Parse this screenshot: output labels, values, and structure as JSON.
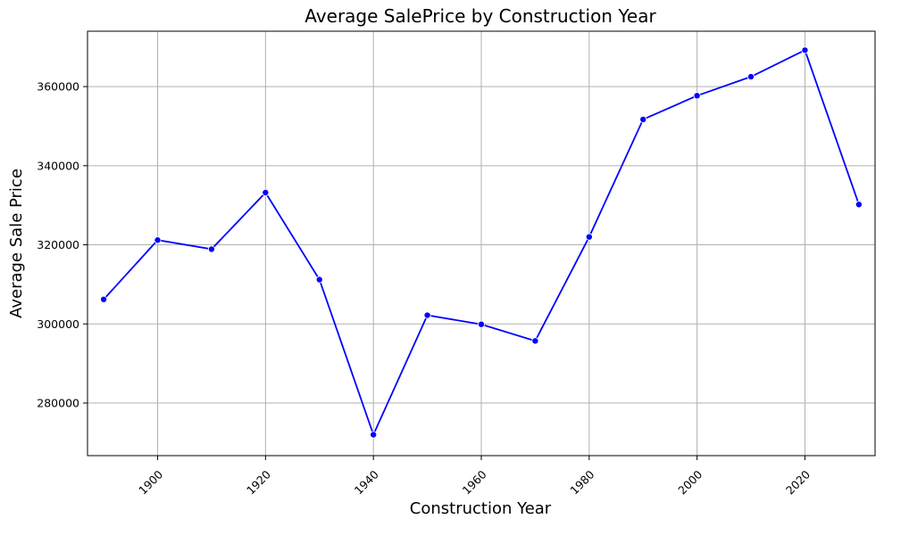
{
  "chart_data": {
    "type": "line",
    "title": "Average SalePrice by Construction Year",
    "xlabel": "Construction Year",
    "ylabel": "Average Sale Price",
    "xlim": [
      1887,
      2033
    ],
    "ylim": [
      266700,
      374000
    ],
    "xticks": [
      1900,
      1920,
      1940,
      1960,
      1980,
      2000,
      2020
    ],
    "yticks": [
      280000,
      300000,
      320000,
      340000,
      360000
    ],
    "x_tick_rotation_deg": 45,
    "grid": true,
    "legend": "none",
    "colors": {
      "series": "#0000ff",
      "grid": "#b0b0b0"
    },
    "series": [
      {
        "marker": "circle",
        "x": [
          1890,
          1900,
          1910,
          1920,
          1930,
          1940,
          1950,
          1960,
          1970,
          1980,
          1990,
          2000,
          2010,
          2020,
          2030
        ],
        "values": [
          306200,
          321200,
          318900,
          333200,
          311200,
          272000,
          302200,
          299900,
          295700,
          322000,
          351700,
          357700,
          362500,
          369200,
          330200
        ]
      }
    ]
  }
}
